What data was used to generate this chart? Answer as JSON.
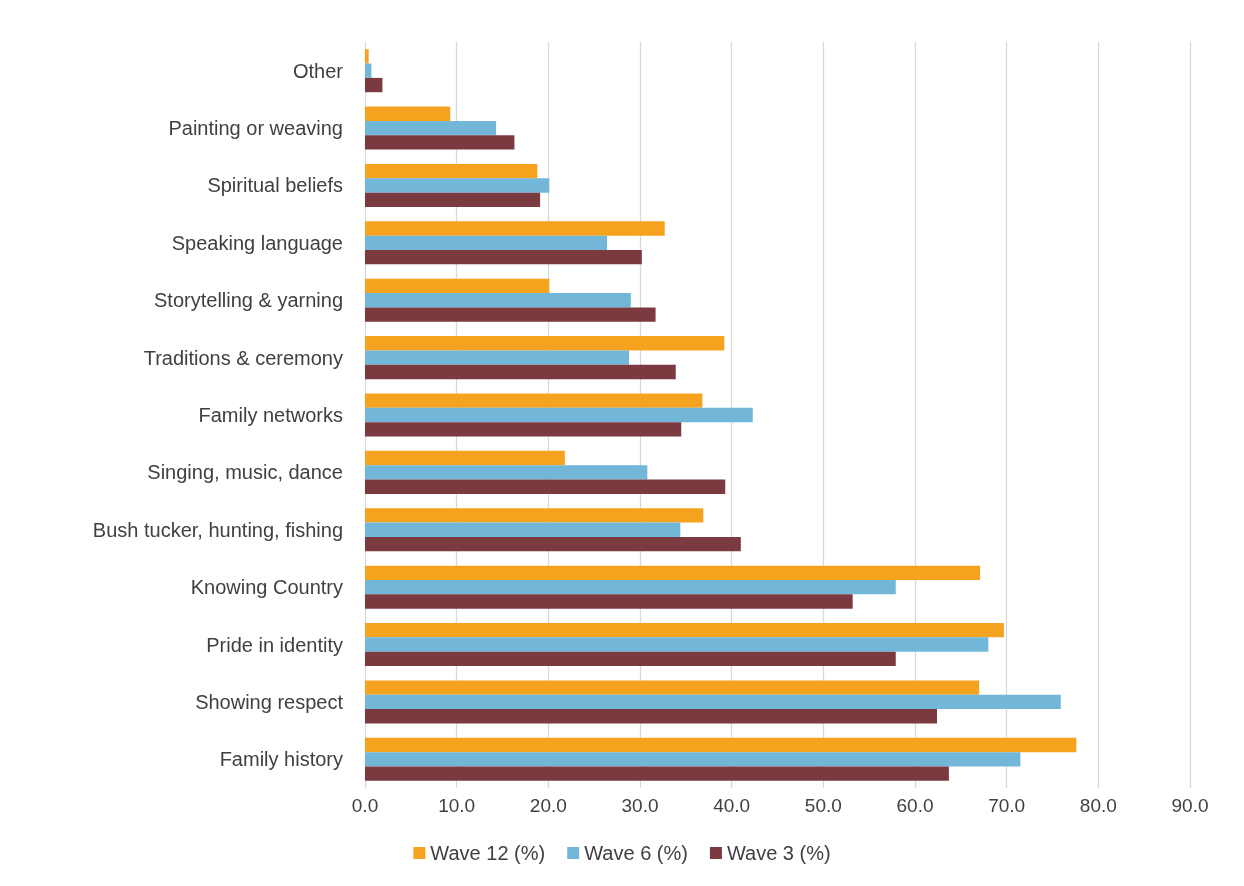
{
  "chart_data": {
    "type": "bar",
    "orientation": "horizontal",
    "categories": [
      "Other",
      "Painting or weaving",
      "Spiritual beliefs",
      "Speaking language",
      "Storytelling & yarning",
      "Traditions & ceremony",
      "Family networks",
      "Singing, music, dance",
      "Bush tucker, hunting, fishing",
      "Knowing Country",
      "Pride in identity",
      "Showing respect",
      "Family history"
    ],
    "series": [
      {
        "name": "Wave 12 (%)",
        "color": "#f5a31e",
        "values": [
          0.4,
          9.3,
          18.8,
          32.7,
          20.1,
          39.2,
          36.8,
          21.8,
          36.9,
          67.1,
          69.7,
          67.0,
          77.6
        ]
      },
      {
        "name": "Wave 6 (%)",
        "color": "#72b7d8",
        "values": [
          0.7,
          14.3,
          20.1,
          26.4,
          29.0,
          28.8,
          42.3,
          30.8,
          34.4,
          57.9,
          68.0,
          75.9,
          71.5
        ]
      },
      {
        "name": "Wave 3 (%)",
        "color": "#7b3a40",
        "values": [
          1.9,
          16.3,
          19.1,
          30.2,
          31.7,
          33.9,
          34.5,
          39.3,
          41.0,
          53.2,
          57.9,
          62.4,
          63.7
        ]
      }
    ],
    "xlim": [
      0,
      90
    ],
    "xticks": [
      {
        "value": 0,
        "label": "0.0"
      },
      {
        "value": 10,
        "label": "10.0"
      },
      {
        "value": 20,
        "label": "20.0"
      },
      {
        "value": 30,
        "label": "30.0"
      },
      {
        "value": 40,
        "label": "40.0"
      },
      {
        "value": 50,
        "label": "50.0"
      },
      {
        "value": 60,
        "label": "60.0"
      },
      {
        "value": 70,
        "label": "70.0"
      },
      {
        "value": 80,
        "label": "80.0"
      },
      {
        "value": 90,
        "label": "90.0"
      }
    ],
    "grid": "x",
    "legend": "bottom"
  }
}
